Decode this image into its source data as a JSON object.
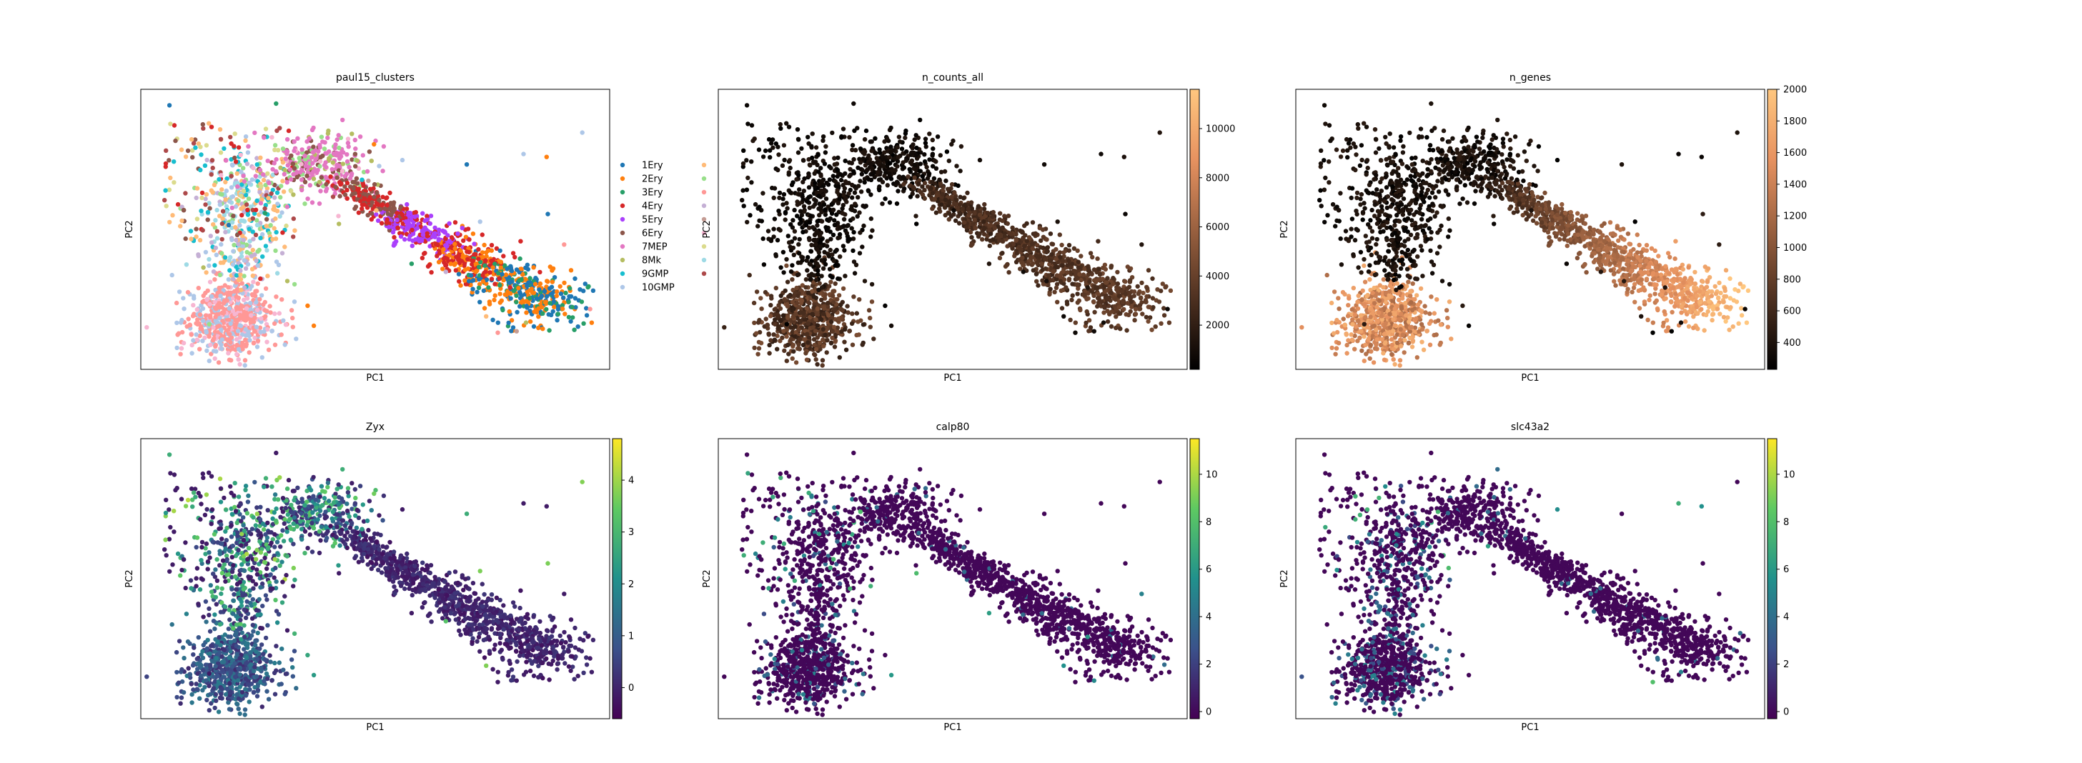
{
  "chart_data": [
    {
      "type": "scatter",
      "title": "paul15_clusters",
      "xlabel": "PC1",
      "ylabel": "PC2",
      "color_mode": "categorical",
      "legend_title": "",
      "legend_position": "right",
      "legend": [
        {
          "label": "1Ery",
          "color": "#1f77b4"
        },
        {
          "label": "2Ery",
          "color": "#ff7f0e"
        },
        {
          "label": "3Ery",
          "color": "#279e68"
        },
        {
          "label": "4Ery",
          "color": "#d62728"
        },
        {
          "label": "5Ery",
          "color": "#aa40fc"
        },
        {
          "label": "6Ery",
          "color": "#8c564b"
        },
        {
          "label": "7MEP",
          "color": "#e377c2"
        },
        {
          "label": "8Mk",
          "color": "#b5bd61"
        },
        {
          "label": "9GMP",
          "color": "#17becf"
        },
        {
          "label": "10GMP",
          "color": "#aec7e8"
        },
        {
          "label": "",
          "color": "#ffbb78"
        },
        {
          "label": "",
          "color": "#98df8a"
        },
        {
          "label": "",
          "color": "#ff9896"
        },
        {
          "label": "",
          "color": "#c5b0d5"
        },
        {
          "label": "",
          "color": "#c49c94"
        },
        {
          "label": "",
          "color": "#f7b6d2"
        },
        {
          "label": "",
          "color": "#dbdb8d"
        },
        {
          "label": "",
          "color": "#9edae5"
        },
        {
          "label": "",
          "color": "#ad494a"
        }
      ]
    },
    {
      "type": "scatter",
      "title": "n_counts_all",
      "xlabel": "PC1",
      "ylabel": "PC2",
      "color_mode": "continuous",
      "colormap": "copper",
      "colorbar_range": [
        200,
        11600
      ],
      "colorbar_ticks": [
        "2000",
        "4000",
        "6000",
        "8000",
        "10000"
      ],
      "colorbar_tick_values": [
        2000,
        4000,
        6000,
        8000,
        10000
      ]
    },
    {
      "type": "scatter",
      "title": "n_genes",
      "xlabel": "PC1",
      "ylabel": "PC2",
      "color_mode": "continuous",
      "colormap": "copper",
      "colorbar_range": [
        230,
        2000
      ],
      "colorbar_ticks": [
        "400",
        "600",
        "800",
        "1000",
        "1200",
        "1400",
        "1600",
        "1800",
        "2000"
      ],
      "colorbar_tick_values": [
        400,
        600,
        800,
        1000,
        1200,
        1400,
        1600,
        1800,
        2000
      ]
    },
    {
      "type": "scatter",
      "title": "Zyx",
      "xlabel": "PC1",
      "ylabel": "PC2",
      "color_mode": "continuous",
      "colormap": "viridis",
      "colorbar_range": [
        -0.6,
        4.8
      ],
      "colorbar_ticks": [
        "0",
        "1",
        "2",
        "3",
        "4"
      ],
      "colorbar_tick_values": [
        0,
        1,
        2,
        3,
        4
      ]
    },
    {
      "type": "scatter",
      "title": "calp80",
      "xlabel": "PC1",
      "ylabel": "PC2",
      "color_mode": "continuous",
      "colormap": "viridis",
      "colorbar_range": [
        -0.3,
        11.5
      ],
      "colorbar_ticks": [
        "0",
        "2",
        "4",
        "6",
        "8",
        "10"
      ],
      "colorbar_tick_values": [
        0,
        2,
        4,
        6,
        8,
        10
      ]
    },
    {
      "type": "scatter",
      "title": "slc43a2",
      "xlabel": "PC1",
      "ylabel": "PC2",
      "color_mode": "continuous",
      "colormap": "viridis",
      "colorbar_range": [
        -0.3,
        11.5
      ],
      "colorbar_ticks": [
        "0",
        "2",
        "4",
        "6",
        "8",
        "10"
      ],
      "colorbar_tick_values": [
        0,
        2,
        4,
        6,
        8,
        10
      ]
    }
  ]
}
